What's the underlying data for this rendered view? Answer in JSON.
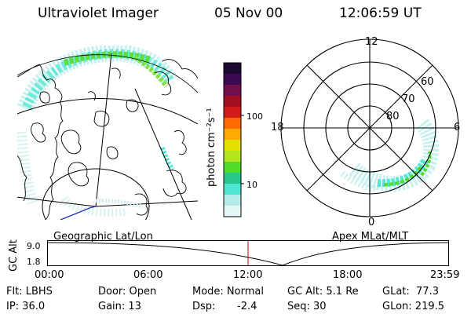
{
  "header": {
    "title": "Ultraviolet Imager",
    "date": "05 Nov 00",
    "time": "12:06:59 UT"
  },
  "colorbar": {
    "unit_label": "photon cm⁻²s⁻¹",
    "ticks": [
      "100",
      "10"
    ],
    "colors": [
      "#1a0a30",
      "#3a0a55",
      "#70104a",
      "#a01020",
      "#d21a1a",
      "#ff6a00",
      "#ffaa00",
      "#e6e000",
      "#b4e61e",
      "#50dc28",
      "#28c88c",
      "#50e6d2",
      "#b4ecec",
      "#e6f5f5"
    ]
  },
  "geo_map": {
    "label": "Geographic Lat/Lon"
  },
  "polar": {
    "label": "Apex MLat/MLT",
    "hour_labels": [
      "12",
      "18",
      "6",
      "0"
    ],
    "lat_labels": [
      "60",
      "70",
      "80"
    ]
  },
  "orbit": {
    "ylabel": "GC Alt",
    "yticks": [
      "9.0",
      "1.8"
    ],
    "xticks": [
      "00:00",
      "06:00",
      "12:00",
      "18:00",
      "23:59"
    ],
    "marker_color": "#c00000"
  },
  "footer": {
    "filter": "Flt: LBHS",
    "door": "Door: Open",
    "mode": "Mode: Normal",
    "gc_alt": "GC Alt: 5.1 Re",
    "glat": "GLat:  77.3",
    "ip": "IP: 36.0",
    "gain": "Gain: 13",
    "dsp_label": "Dsp:",
    "dsp_value": "-2.4",
    "seq": "Seq: 30",
    "glon": "GLon: 219.5"
  }
}
